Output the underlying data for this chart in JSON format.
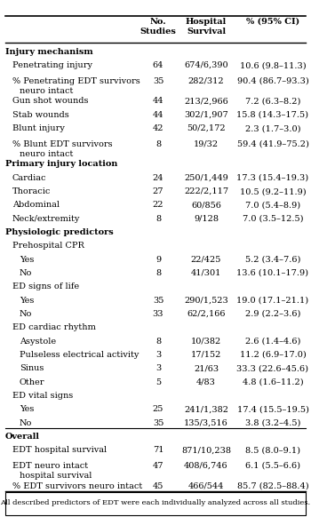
{
  "col_headers": [
    "No.\nStudies",
    "Hospital\nSurvival",
    "% (95% CI)"
  ],
  "rows": [
    {
      "label": "Injury mechanism",
      "indent": 0,
      "bold": true,
      "is_header": true,
      "no_studies": "",
      "hosp_survival": "",
      "pct_ci": "",
      "multiline": false
    },
    {
      "label": "Penetrating injury",
      "indent": 1,
      "bold": false,
      "is_header": false,
      "no_studies": "64",
      "hosp_survival": "674/6,390",
      "pct_ci": "10.6 (9.8–11.3)",
      "multiline": false
    },
    {
      "label": "% Penetrating EDT survivors",
      "label2": "neuro intact",
      "indent": 1,
      "bold": false,
      "is_header": false,
      "no_studies": "35",
      "hosp_survival": "282/312",
      "pct_ci": "90.4 (86.7–93.3)",
      "multiline": true
    },
    {
      "label": "Gun shot wounds",
      "indent": 1,
      "bold": false,
      "is_header": false,
      "no_studies": "44",
      "hosp_survival": "213/2,966",
      "pct_ci": "7.2 (6.3–8.2)",
      "multiline": false
    },
    {
      "label": "Stab wounds",
      "indent": 1,
      "bold": false,
      "is_header": false,
      "no_studies": "44",
      "hosp_survival": "302/1,907",
      "pct_ci": "15.8 (14.3–17.5)",
      "multiline": false
    },
    {
      "label": "Blunt injury",
      "indent": 1,
      "bold": false,
      "is_header": false,
      "no_studies": "42",
      "hosp_survival": "50/2,172",
      "pct_ci": "2.3 (1.7–3.0)",
      "multiline": false
    },
    {
      "label": "% Blunt EDT survivors",
      "label2": "neuro intact",
      "indent": 1,
      "bold": false,
      "is_header": false,
      "no_studies": "8",
      "hosp_survival": "19/32",
      "pct_ci": "59.4 (41.9–75.2)",
      "multiline": true
    },
    {
      "label": "Primary injury location",
      "indent": 0,
      "bold": true,
      "is_header": true,
      "no_studies": "",
      "hosp_survival": "",
      "pct_ci": "",
      "multiline": false
    },
    {
      "label": "Cardiac",
      "indent": 1,
      "bold": false,
      "is_header": false,
      "no_studies": "24",
      "hosp_survival": "250/1,449",
      "pct_ci": "17.3 (15.4–19.3)",
      "multiline": false
    },
    {
      "label": "Thoracic",
      "indent": 1,
      "bold": false,
      "is_header": false,
      "no_studies": "27",
      "hosp_survival": "222/2,117",
      "pct_ci": "10.5 (9.2–11.9)",
      "multiline": false
    },
    {
      "label": "Abdominal",
      "indent": 1,
      "bold": false,
      "is_header": false,
      "no_studies": "22",
      "hosp_survival": "60/856",
      "pct_ci": "7.0 (5.4–8.9)",
      "multiline": false
    },
    {
      "label": "Neck/extremity",
      "indent": 1,
      "bold": false,
      "is_header": false,
      "no_studies": "8",
      "hosp_survival": "9/128",
      "pct_ci": "7.0 (3.5–12.5)",
      "multiline": false
    },
    {
      "label": "Physiologic predictors",
      "indent": 0,
      "bold": true,
      "is_header": true,
      "no_studies": "",
      "hosp_survival": "",
      "pct_ci": "",
      "multiline": false
    },
    {
      "label": "Prehospital CPR",
      "indent": 1,
      "bold": false,
      "is_header": false,
      "no_studies": "",
      "hosp_survival": "",
      "pct_ci": "",
      "multiline": false
    },
    {
      "label": "Yes",
      "indent": 2,
      "bold": false,
      "is_header": false,
      "no_studies": "9",
      "hosp_survival": "22/425",
      "pct_ci": "5.2 (3.4–7.6)",
      "multiline": false
    },
    {
      "label": "No",
      "indent": 2,
      "bold": false,
      "is_header": false,
      "no_studies": "8",
      "hosp_survival": "41/301",
      "pct_ci": "13.6 (10.1–17.9)",
      "multiline": false
    },
    {
      "label": "ED signs of life",
      "indent": 1,
      "bold": false,
      "is_header": false,
      "no_studies": "",
      "hosp_survival": "",
      "pct_ci": "",
      "multiline": false
    },
    {
      "label": "Yes",
      "indent": 2,
      "bold": false,
      "is_header": false,
      "no_studies": "35",
      "hosp_survival": "290/1,523",
      "pct_ci": "19.0 (17.1–21.1)",
      "multiline": false
    },
    {
      "label": "No",
      "indent": 2,
      "bold": false,
      "is_header": false,
      "no_studies": "33",
      "hosp_survival": "62/2,166",
      "pct_ci": "2.9 (2.2–3.6)",
      "multiline": false
    },
    {
      "label": "ED cardiac rhythm",
      "indent": 1,
      "bold": false,
      "is_header": false,
      "no_studies": "",
      "hosp_survival": "",
      "pct_ci": "",
      "multiline": false
    },
    {
      "label": "Asystole",
      "indent": 2,
      "bold": false,
      "is_header": false,
      "no_studies": "8",
      "hosp_survival": "10/382",
      "pct_ci": "2.6 (1.4–4.6)",
      "multiline": false
    },
    {
      "label": "Pulseless electrical activity",
      "indent": 2,
      "bold": false,
      "is_header": false,
      "no_studies": "3",
      "hosp_survival": "17/152",
      "pct_ci": "11.2 (6.9–17.0)",
      "multiline": false
    },
    {
      "label": "Sinus",
      "indent": 2,
      "bold": false,
      "is_header": false,
      "no_studies": "3",
      "hosp_survival": "21/63",
      "pct_ci": "33.3 (22.6–45.6)",
      "multiline": false
    },
    {
      "label": "Other",
      "indent": 2,
      "bold": false,
      "is_header": false,
      "no_studies": "5",
      "hosp_survival": "4/83",
      "pct_ci": "4.8 (1.6–11.2)",
      "multiline": false
    },
    {
      "label": "ED vital signs",
      "indent": 1,
      "bold": false,
      "is_header": false,
      "no_studies": "",
      "hosp_survival": "",
      "pct_ci": "",
      "multiline": false
    },
    {
      "label": "Yes",
      "indent": 2,
      "bold": false,
      "is_header": false,
      "no_studies": "25",
      "hosp_survival": "241/1,382",
      "pct_ci": "17.4 (15.5–19.5)",
      "multiline": false
    },
    {
      "label": "No",
      "indent": 2,
      "bold": false,
      "is_header": false,
      "no_studies": "35",
      "hosp_survival": "135/3,516",
      "pct_ci": "3.8 (3.2–4.5)",
      "multiline": false
    },
    {
      "label": "Overall",
      "indent": 0,
      "bold": true,
      "is_header": true,
      "no_studies": "",
      "hosp_survival": "",
      "pct_ci": "",
      "multiline": false
    },
    {
      "label": "EDT hospital survival",
      "indent": 1,
      "bold": false,
      "is_header": false,
      "no_studies": "71",
      "hosp_survival": "871/10,238",
      "pct_ci": "8.5 (8.0–9.1)",
      "multiline": false
    },
    {
      "label": "EDT neuro intact",
      "label2": "hospital survival",
      "indent": 1,
      "bold": false,
      "is_header": false,
      "no_studies": "47",
      "hosp_survival": "408/6,746",
      "pct_ci": "6.1 (5.5–6.6)",
      "multiline": true
    },
    {
      "label": "% EDT survivors neuro intact",
      "indent": 1,
      "bold": false,
      "is_header": false,
      "no_studies": "45",
      "hosp_survival": "466/544",
      "pct_ci": "85.7 (82.5–88.4)",
      "multiline": false
    }
  ],
  "footnote": "All described predictors of EDT were each individually analyzed across all studies.",
  "bg_color": "#ffffff",
  "text_color": "#000000"
}
